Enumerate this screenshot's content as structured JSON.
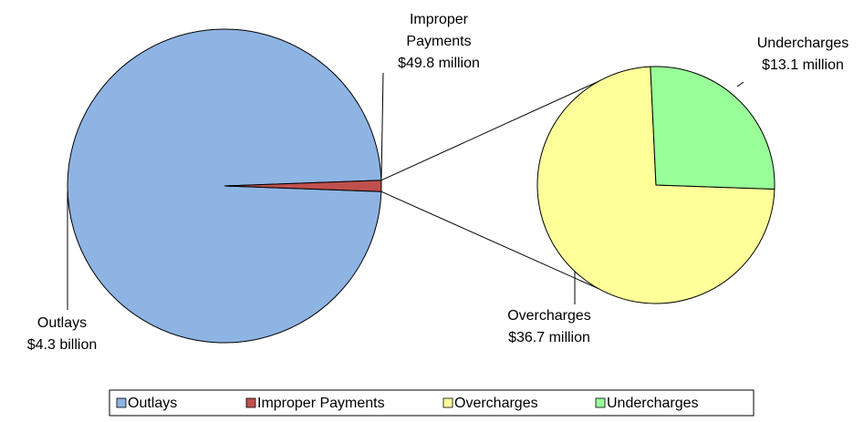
{
  "chart_data": {
    "type": "pie-of-pie",
    "categories": [
      "Outlays",
      "Improper Payments",
      "Overcharges",
      "Undercharges"
    ],
    "values": [
      4300000000,
      49800000,
      36700000,
      13100000
    ],
    "value_labels": [
      "$4.3 billion",
      "$49.8 million",
      "$36.7 million",
      "$13.1 million"
    ],
    "colors": [
      "#8EB4E3",
      "#C0504D",
      "#FFFF99",
      "#99FF99"
    ],
    "legend": "bottom"
  }
}
